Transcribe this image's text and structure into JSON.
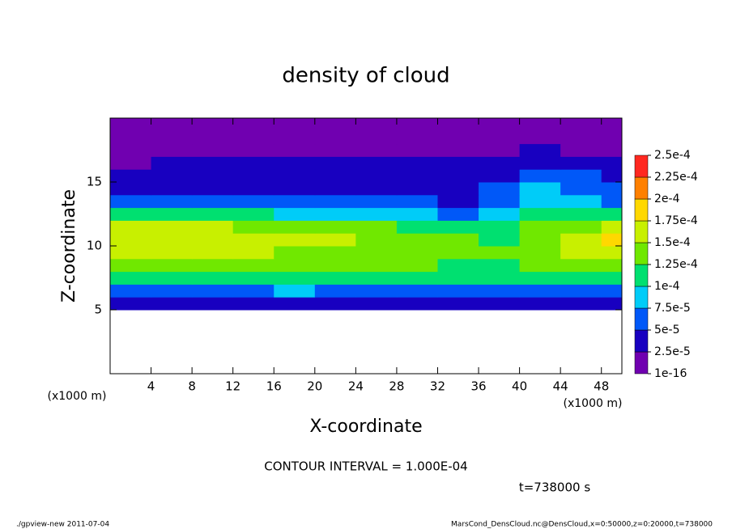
{
  "chart_data": {
    "type": "contour",
    "title": "density of cloud",
    "x_label": "X-coordinate",
    "y_label": "Z-coordinate",
    "x_unit": "(x1000 m)",
    "xlim": [
      0,
      50
    ],
    "xticks": [
      4,
      8,
      12,
      16,
      20,
      24,
      28,
      32,
      36,
      40,
      44,
      48
    ],
    "ylim": [
      0,
      20
    ],
    "yticks": [
      5,
      10,
      15
    ],
    "x": [
      2,
      6,
      10,
      14,
      18,
      22,
      26,
      30,
      34,
      38,
      42,
      46,
      50
    ],
    "y": [
      5.5,
      6.5,
      7.5,
      8.5,
      9.5,
      10.5,
      11.5,
      12.5,
      13.5,
      14.5,
      15.5,
      16.5,
      17.5,
      18.5,
      19.5
    ],
    "z": [
      [
        3e-05,
        3e-05,
        3e-05,
        3e-05,
        4e-05,
        3e-05,
        3e-05,
        3e-05,
        3e-05,
        4e-05,
        3e-05,
        3e-05,
        3e-05
      ],
      [
        7e-05,
        6.5e-05,
        6e-05,
        7e-05,
        7.5e-05,
        6e-05,
        6e-05,
        6e-05,
        6e-05,
        7e-05,
        6.5e-05,
        6.5e-05,
        7e-05
      ],
      [
        0.00011,
        0.000105,
        0.00011,
        0.000105,
        0.00011,
        0.000105,
        0.0001,
        0.0001,
        0.0001,
        0.0001,
        0.000105,
        0.00011,
        0.00011
      ],
      [
        0.000135,
        0.00013,
        0.00013,
        0.00013,
        0.00013,
        0.000125,
        0.000125,
        0.000125,
        0.00012,
        0.000115,
        0.000125,
        0.00013,
        0.000135
      ],
      [
        0.000155,
        0.00015,
        0.000155,
        0.00015,
        0.000145,
        0.00014,
        0.000135,
        0.000135,
        0.00013,
        0.000125,
        0.000135,
        0.00015,
        0.00016
      ],
      [
        0.00017,
        0.000165,
        0.00017,
        0.00016,
        0.000155,
        0.00015,
        0.00014,
        0.000135,
        0.00013,
        0.00012,
        0.00014,
        0.00016,
        0.000175
      ],
      [
        0.000155,
        0.00015,
        0.00015,
        0.000145,
        0.00014,
        0.00013,
        0.000125,
        0.000115,
        0.00011,
        0.000105,
        0.000125,
        0.000145,
        0.000155
      ],
      [
        0.00011,
        0.000105,
        0.000105,
        0.0001,
        9e-05,
        8e-05,
        9.5e-05,
        8e-05,
        7e-05,
        8e-05,
        0.000105,
        0.00011,
        0.00011
      ],
      [
        6e-05,
        6e-05,
        6e-05,
        6e-05,
        5.5e-05,
        5e-05,
        5.5e-05,
        5e-05,
        4.5e-05,
        7e-05,
        9e-05,
        8.5e-05,
        7e-05
      ],
      [
        4.5e-05,
        4.5e-05,
        4.5e-05,
        4.5e-05,
        4.5e-05,
        4e-05,
        4e-05,
        3.5e-05,
        3e-05,
        6e-05,
        8e-05,
        7e-05,
        5.5e-05
      ],
      [
        3.5e-05,
        3.5e-05,
        3.5e-05,
        3.5e-05,
        3.5e-05,
        3.5e-05,
        3e-05,
        3e-05,
        3e-05,
        4e-05,
        6e-05,
        5e-05,
        4e-05
      ],
      [
        2e-05,
        2.8e-05,
        2.8e-05,
        2.8e-05,
        2.8e-05,
        2.8e-05,
        2.6e-05,
        2.6e-05,
        2.6e-05,
        2.8e-05,
        3.5e-05,
        3e-05,
        2.8e-05
      ],
      [
        1.5e-05,
        2e-05,
        2e-05,
        2e-05,
        2e-05,
        2e-05,
        2e-05,
        2e-05,
        2e-05,
        2e-05,
        2.6e-05,
        2.2e-05,
        2e-05
      ],
      [
        1e-05,
        1e-05,
        1e-05,
        1e-05,
        1e-05,
        1e-05,
        1e-05,
        1e-05,
        1e-05,
        1e-05,
        1e-05,
        1e-05,
        1e-05
      ],
      [
        5e-06,
        5e-06,
        5e-06,
        5e-06,
        5e-06,
        5e-06,
        5e-06,
        5e-06,
        5e-06,
        5e-06,
        5e-06,
        5e-06,
        5e-06
      ]
    ],
    "levels": [
      {
        "value": 1e-16,
        "label": "1e-16"
      },
      {
        "value": 2.5e-05,
        "label": "2.5e-5"
      },
      {
        "value": 5e-05,
        "label": "5e-5"
      },
      {
        "value": 7.5e-05,
        "label": "7.5e-5"
      },
      {
        "value": 0.0001,
        "label": "1e-4"
      },
      {
        "value": 0.000125,
        "label": "1.25e-4"
      },
      {
        "value": 0.00015,
        "label": "1.5e-4"
      },
      {
        "value": 0.000175,
        "label": "1.75e-4"
      },
      {
        "value": 0.0002,
        "label": "2e-4"
      },
      {
        "value": 0.000225,
        "label": "2.25e-4"
      },
      {
        "value": 0.00025,
        "label": "2.5e-4"
      }
    ],
    "colors": [
      "#7000b0",
      "#1800c0",
      "#0058f8",
      "#00ccf8",
      "#00e070",
      "#70e800",
      "#c8f000",
      "#ffd800",
      "#ff8000",
      "#ff2820"
    ],
    "contour_note": "CONTOUR INTERVAL = 1.000E-04",
    "time_note": "t=738000 s",
    "footer_left": "./gpview-new  2011-07-04",
    "footer_right": "MarsCond_DensCloud.nc@DensCloud,x=0:50000,z=0:20000,t=738000"
  }
}
